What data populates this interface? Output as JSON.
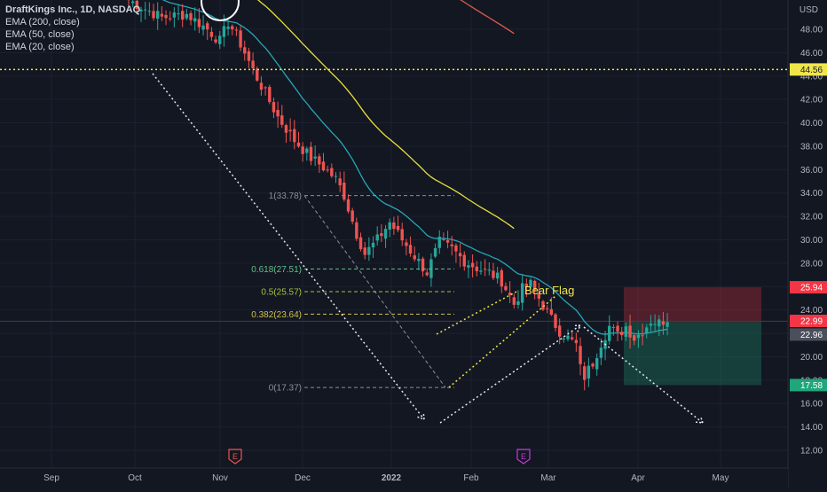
{
  "chart_data": {
    "type": "candlestick",
    "title": "DraftKings Inc., 1D, NASDAQ",
    "currency": "USD",
    "indicators": [
      {
        "label": "EMA (200, close)",
        "color": "#e05a50"
      },
      {
        "label": "EMA (50, close)",
        "color": "#e9e03b"
      },
      {
        "label": "EMA (20, close)",
        "color": "#26a6b8"
      }
    ],
    "y_ticks": [
      "48.00",
      "46.00",
      "44.00",
      "42.00",
      "40.00",
      "38.00",
      "36.00",
      "34.00",
      "32.00",
      "30.00",
      "28.00",
      "26.00",
      "24.00",
      "22.00",
      "20.00",
      "18.00",
      "16.00",
      "14.00",
      "12.00"
    ],
    "y_range": [
      10.8,
      51.2
    ],
    "x_ticks": [
      "Sep",
      "Oct",
      "Nov",
      "Dec",
      "2022",
      "Feb",
      "Mar",
      "Apr",
      "May"
    ],
    "price_badges": [
      {
        "value": "44.56",
        "bg": "#f0e64a",
        "fg": "#131722"
      },
      {
        "value": "25.94",
        "bg": "#f23645",
        "fg": "#ffffff"
      },
      {
        "value": "22.99",
        "bg": "#f23645",
        "fg": "#ffffff"
      },
      {
        "value": "22.96",
        "bg": "#4a4f5c",
        "fg": "#ffffff"
      },
      {
        "value": "17.58",
        "bg": "#1fa67a",
        "fg": "#ffffff"
      }
    ],
    "horizontal_line": 44.56,
    "fibonacci": [
      {
        "label": "1(33.78)",
        "value": 33.78,
        "color": "#8a8f99"
      },
      {
        "label": "0.618(27.51)",
        "value": 27.51,
        "color": "#61c08a"
      },
      {
        "label": "0.5(25.57)",
        "value": 25.57,
        "color": "#a4c23a"
      },
      {
        "label": "0.382(23.64)",
        "value": 23.64,
        "color": "#cfc24a"
      },
      {
        "label": "0(17.37)",
        "value": 17.37,
        "color": "#8a8f99"
      }
    ],
    "annotation": "Bear Flag",
    "position_box": {
      "stop": 25.94,
      "entry": 22.96,
      "target": 17.58
    },
    "earnings_markers": [
      "E",
      "E"
    ],
    "colors": {
      "up": "#26a69a",
      "down": "#ef5350",
      "background": "#131722",
      "grid": "#1e222d"
    }
  }
}
